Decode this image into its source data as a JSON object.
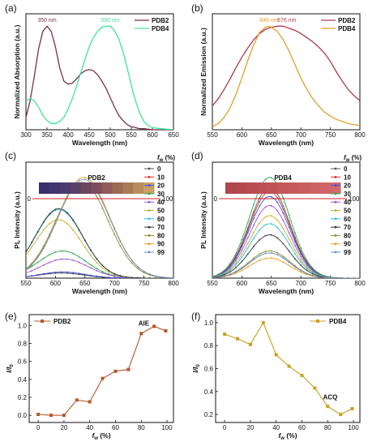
{
  "chart_data": [
    {
      "panel": "(a)",
      "type": "line",
      "xlabel": "Wavelength (nm)",
      "ylabel": "Normalized Absorption (a.u.)",
      "xlim": [
        300,
        650
      ],
      "ylim": [
        0,
        1.12
      ],
      "xticks": [
        "300",
        "350",
        "400",
        "450",
        "500",
        "550",
        "600",
        "650"
      ],
      "legend": "top-right",
      "series": [
        {
          "name": "PDB2",
          "color": "#7a2f4f",
          "x": [
            300,
            310,
            320,
            330,
            340,
            350,
            360,
            370,
            380,
            390,
            400,
            410,
            420,
            430,
            440,
            450,
            460,
            470,
            480,
            490,
            500,
            510,
            520,
            530,
            540,
            550,
            560,
            570,
            580,
            600,
            620,
            650
          ],
          "y": [
            0.12,
            0.28,
            0.52,
            0.78,
            0.95,
            1.0,
            0.95,
            0.8,
            0.6,
            0.47,
            0.44,
            0.45,
            0.49,
            0.54,
            0.57,
            0.58,
            0.57,
            0.53,
            0.47,
            0.4,
            0.31,
            0.22,
            0.14,
            0.09,
            0.05,
            0.03,
            0.02,
            0.01,
            0.01,
            0,
            0,
            0
          ]
        },
        {
          "name": "PDB4",
          "color": "#3fe39a",
          "x": [
            300,
            310,
            320,
            330,
            340,
            350,
            360,
            370,
            380,
            390,
            400,
            410,
            420,
            430,
            440,
            450,
            460,
            470,
            480,
            490,
            500,
            510,
            520,
            530,
            540,
            550,
            560,
            570,
            580,
            590,
            600,
            620,
            650
          ],
          "y": [
            0.28,
            0.3,
            0.28,
            0.22,
            0.14,
            0.09,
            0.06,
            0.06,
            0.08,
            0.12,
            0.2,
            0.3,
            0.42,
            0.55,
            0.68,
            0.8,
            0.89,
            0.95,
            0.99,
            1.0,
            1.0,
            0.96,
            0.88,
            0.76,
            0.6,
            0.43,
            0.28,
            0.16,
            0.08,
            0.04,
            0.02,
            0.01,
            0
          ]
        }
      ],
      "annotations": [
        {
          "text": "350 nm",
          "x": 350,
          "y": 1.04,
          "color": "#7a2f4f"
        },
        {
          "text": "500 nm",
          "x": 500,
          "y": 1.04,
          "color": "#3fe39a"
        }
      ]
    },
    {
      "panel": "(b)",
      "type": "line",
      "xlabel": "Wavelength (nm)",
      "ylabel": "Normalized Emission (a.u.)",
      "xlim": [
        550,
        800
      ],
      "ylim": [
        0,
        1.12
      ],
      "xticks": [
        "550",
        "600",
        "650",
        "700",
        "750",
        "800"
      ],
      "legend": "top-right",
      "series": [
        {
          "name": "PDB2",
          "color": "#b03a4a",
          "x": [
            550,
            560,
            570,
            580,
            590,
            600,
            610,
            620,
            630,
            640,
            650,
            660,
            670,
            680,
            690,
            700,
            710,
            720,
            730,
            740,
            750,
            760,
            770,
            780,
            790,
            800
          ],
          "y": [
            0.23,
            0.3,
            0.39,
            0.49,
            0.6,
            0.7,
            0.79,
            0.87,
            0.93,
            0.97,
            0.99,
            1.0,
            1.0,
            0.98,
            0.96,
            0.93,
            0.89,
            0.85,
            0.8,
            0.74,
            0.66,
            0.56,
            0.47,
            0.39,
            0.33,
            0.28
          ]
        },
        {
          "name": "PDB4",
          "color": "#e0a12a",
          "x": [
            550,
            560,
            570,
            580,
            590,
            600,
            610,
            620,
            630,
            640,
            646,
            650,
            660,
            670,
            680,
            690,
            700,
            710,
            720,
            730,
            740,
            750,
            760,
            770,
            780,
            790,
            800
          ],
          "y": [
            0.03,
            0.06,
            0.12,
            0.21,
            0.34,
            0.5,
            0.67,
            0.82,
            0.94,
            0.99,
            1.0,
            0.99,
            0.95,
            0.87,
            0.76,
            0.63,
            0.5,
            0.39,
            0.3,
            0.23,
            0.17,
            0.13,
            0.1,
            0.08,
            0.06,
            0.05,
            0.04
          ]
        }
      ],
      "annotations": [
        {
          "text": "646 nm",
          "x": 646,
          "y": 1.04,
          "color": "#e0a12a"
        },
        {
          "text": "676 nm",
          "x": 676,
          "y": 1.04,
          "color": "#b03a4a"
        }
      ]
    },
    {
      "panel": "(c)",
      "type": "line",
      "xlabel": "Wavelength (nm)",
      "ylabel": "PL Intensity (a.u.)",
      "xlim": [
        550,
        800
      ],
      "ylim": [
        0,
        1.15
      ],
      "xticks": [
        "550",
        "600",
        "650",
        "700",
        "750",
        "800"
      ],
      "inset_title": "PDB2",
      "inset_scale": [
        "0",
        "100"
      ],
      "inset_colors": [
        "#3a2f6e",
        "#41366f",
        "#4a3a70",
        "#5b3f66",
        "#6c455f",
        "#7e4d5c",
        "#8f5a58",
        "#9c6a55",
        "#a87a58",
        "#b98d5e",
        "#c9a064"
      ],
      "legend_title": "f_w (%)",
      "series": [
        {
          "name": "0",
          "color": "#555555",
          "peak": 0.05,
          "center": 610,
          "width": 38
        },
        {
          "name": "10",
          "color": "#e03030",
          "peak": 0.06,
          "center": 612,
          "width": 38
        },
        {
          "name": "20",
          "color": "#3355dd",
          "peak": 0.06,
          "center": 612,
          "width": 38
        },
        {
          "name": "30",
          "color": "#2aa84a",
          "peak": 0.27,
          "center": 612,
          "width": 40
        },
        {
          "name": "40",
          "color": "#9b55d6",
          "peak": 0.19,
          "center": 615,
          "width": 40
        },
        {
          "name": "50",
          "color": "#c8b02a",
          "peak": 0.58,
          "center": 605,
          "width": 40
        },
        {
          "name": "60",
          "color": "#2ec0d8",
          "peak": 0.68,
          "center": 606,
          "width": 40
        },
        {
          "name": "70",
          "color": "#333333",
          "peak": 0.69,
          "center": 606,
          "width": 40
        },
        {
          "name": "80",
          "color": "#8a8a2a",
          "peak": 0.95,
          "center": 645,
          "width": 44
        },
        {
          "name": "90",
          "color": "#e6a020",
          "peak": 1.0,
          "center": 648,
          "width": 44
        },
        {
          "name": "99",
          "color": "#6a8acb",
          "peak": 0.98,
          "center": 648,
          "width": 44
        }
      ]
    },
    {
      "panel": "(d)",
      "type": "line",
      "xlabel": "Wavelength (nm)",
      "ylabel": "PL Intensity (a.u.)",
      "xlim": [
        550,
        800
      ],
      "ylim": [
        0,
        1.15
      ],
      "xticks": [
        "550",
        "600",
        "650",
        "700",
        "750",
        "800"
      ],
      "inset_title": "PDB4",
      "inset_scale": [
        "0",
        "100"
      ],
      "inset_colors": [
        "#b0454d",
        "#b4484f",
        "#b84b52",
        "#bd4f55",
        "#c05357",
        "#c4575a",
        "#c65a5d",
        "#c95e60",
        "#cc6264",
        "#cf6568",
        "#d2696c"
      ],
      "legend_title": "f_w (%)",
      "series": [
        {
          "name": "0",
          "color": "#555555",
          "peak": 0.9,
          "center": 647,
          "width": 34
        },
        {
          "name": "10",
          "color": "#e03030",
          "peak": 0.86,
          "center": 647,
          "width": 34
        },
        {
          "name": "20",
          "color": "#3355dd",
          "peak": 0.81,
          "center": 647,
          "width": 34
        },
        {
          "name": "30",
          "color": "#2aa84a",
          "peak": 1.0,
          "center": 647,
          "width": 34
        },
        {
          "name": "40",
          "color": "#9b55d6",
          "peak": 0.72,
          "center": 647,
          "width": 34
        },
        {
          "name": "50",
          "color": "#c8b02a",
          "peak": 0.62,
          "center": 647,
          "width": 34
        },
        {
          "name": "60",
          "color": "#2ec0d8",
          "peak": 0.54,
          "center": 647,
          "width": 34
        },
        {
          "name": "70",
          "color": "#333333",
          "peak": 0.43,
          "center": 647,
          "width": 34
        },
        {
          "name": "80",
          "color": "#8a8a2a",
          "peak": 0.27,
          "center": 647,
          "width": 34
        },
        {
          "name": "90",
          "color": "#e6a020",
          "peak": 0.2,
          "center": 647,
          "width": 34
        },
        {
          "name": "99",
          "color": "#6a8acb",
          "peak": 0.25,
          "center": 647,
          "width": 34
        }
      ]
    },
    {
      "panel": "(e)",
      "type": "line",
      "marker": "square",
      "xlabel": "f_w (%)",
      "ylabel": "I/I_0",
      "xlim": [
        -7,
        105
      ],
      "ylim": [
        -0.08,
        1.12
      ],
      "xticks": [
        "0",
        "20",
        "40",
        "60",
        "80",
        "100"
      ],
      "yticks": [
        "0.0",
        "0.2",
        "0.4",
        "0.6",
        "0.8",
        "1.0"
      ],
      "legend": "top-left",
      "series": [
        {
          "name": "PDB2",
          "color": "#b5572c",
          "x": [
            0,
            10,
            20,
            30,
            40,
            50,
            60,
            70,
            80,
            90,
            99
          ],
          "y": [
            0.01,
            0.0,
            0.0,
            0.17,
            0.15,
            0.41,
            0.49,
            0.51,
            0.91,
            0.99,
            0.94
          ]
        }
      ],
      "annotations": [
        {
          "text": "AIE",
          "x": 82,
          "y": 1.0,
          "color": "#b5572c"
        }
      ]
    },
    {
      "panel": "(f)",
      "type": "line",
      "marker": "square",
      "xlabel": "f_w (%)",
      "ylabel": "I/I_0",
      "xlim": [
        -7,
        105
      ],
      "ylim": [
        0.13,
        1.07
      ],
      "xticks": [
        "0",
        "20",
        "40",
        "60",
        "80",
        "100"
      ],
      "yticks": [
        "0.2",
        "0.4",
        "0.6",
        "0.8",
        "1.0"
      ],
      "legend": "top-right",
      "series": [
        {
          "name": "PDB4",
          "color": "#c9a021",
          "x": [
            0,
            10,
            20,
            30,
            40,
            50,
            60,
            70,
            80,
            90,
            99
          ],
          "y": [
            0.9,
            0.86,
            0.81,
            1.0,
            0.72,
            0.62,
            0.54,
            0.43,
            0.27,
            0.2,
            0.25
          ]
        }
      ],
      "annotations": [
        {
          "text": "ACQ",
          "x": 82,
          "y": 0.33,
          "color": "#c9a021"
        }
      ]
    }
  ]
}
